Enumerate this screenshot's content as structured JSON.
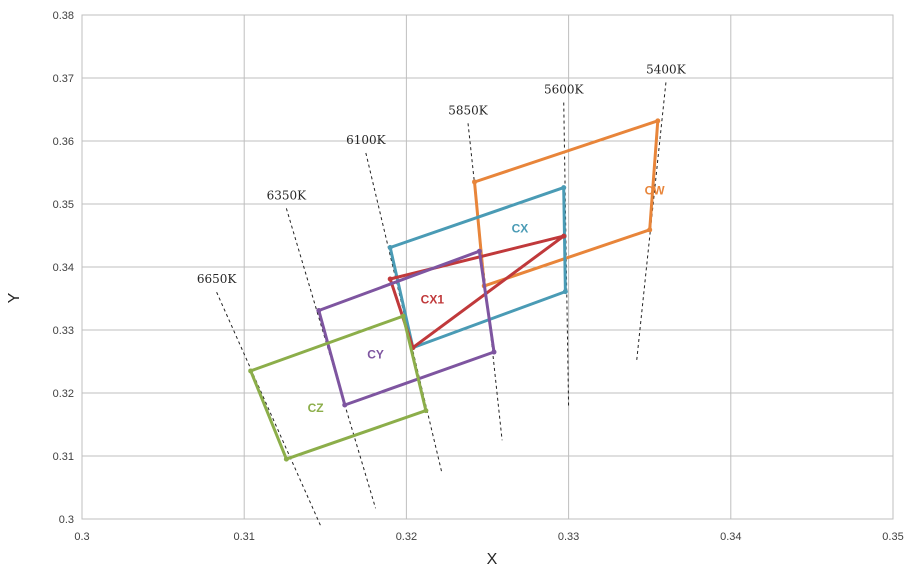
{
  "chart_data": {
    "type": "scatter",
    "xlabel": "X",
    "ylabel": "Y",
    "xlim": [
      0.3,
      0.35
    ],
    "ylim": [
      0.3,
      0.38
    ],
    "x_ticks": [
      "0.3",
      "0.31",
      "0.32",
      "0.33",
      "0.34",
      "0.35"
    ],
    "y_ticks": [
      "0.3",
      "0.31",
      "0.32",
      "0.33",
      "0.34",
      "0.35",
      "0.36",
      "0.37",
      "0.38"
    ],
    "grid": true,
    "legend": "none",
    "isotherms": [
      {
        "label": "6650K",
        "points": [
          [
            0.3083,
            0.336
          ],
          [
            0.3147,
            0.299
          ]
        ]
      },
      {
        "label": "6350K",
        "points": [
          [
            0.3126,
            0.3493
          ],
          [
            0.3181,
            0.3017
          ]
        ]
      },
      {
        "label": "6100K",
        "points": [
          [
            0.3175,
            0.3581
          ],
          [
            0.3222,
            0.3072
          ]
        ]
      },
      {
        "label": "5850K",
        "points": [
          [
            0.3238,
            0.3628
          ],
          [
            0.3259,
            0.3125
          ]
        ]
      },
      {
        "label": "5600K",
        "points": [
          [
            0.3297,
            0.3661
          ],
          [
            0.33,
            0.3177
          ]
        ]
      },
      {
        "label": "5400K",
        "points": [
          [
            0.336,
            0.3693
          ],
          [
            0.3342,
            0.3252
          ]
        ]
      }
    ],
    "series": [
      {
        "name": "CW",
        "color": "#E8853A",
        "points": [
          [
            0.3242,
            0.3535
          ],
          [
            0.3355,
            0.3632
          ],
          [
            0.335,
            0.3459
          ],
          [
            0.3248,
            0.337
          ]
        ]
      },
      {
        "name": "CX",
        "color": "#4A9BB5",
        "points": [
          [
            0.319,
            0.3431
          ],
          [
            0.3297,
            0.3526
          ],
          [
            0.3298,
            0.3361
          ],
          [
            0.3204,
            0.3272
          ]
        ]
      },
      {
        "name": "CX1",
        "color": "#C0393B",
        "points": [
          [
            0.319,
            0.3381
          ],
          [
            0.3297,
            0.3449
          ],
          [
            0.3204,
            0.3272
          ]
        ]
      },
      {
        "name": "CY",
        "color": "#7E55A0",
        "points": [
          [
            0.3146,
            0.3331
          ],
          [
            0.3245,
            0.3425
          ],
          [
            0.3254,
            0.3265
          ],
          [
            0.3162,
            0.3181
          ]
        ]
      },
      {
        "name": "CZ",
        "color": "#8CAE4A",
        "points": [
          [
            0.3104,
            0.3235
          ],
          [
            0.3198,
            0.3322
          ],
          [
            0.3212,
            0.3172
          ],
          [
            0.3126,
            0.3095
          ]
        ]
      }
    ],
    "polygon_labels": [
      {
        "text": "CW",
        "x": 0.3353,
        "y": 0.3515
      },
      {
        "text": "CX",
        "x": 0.327,
        "y": 0.3455
      },
      {
        "text": "CX1",
        "x": 0.3216,
        "y": 0.3342
      },
      {
        "text": "CY",
        "x": 0.3181,
        "y": 0.3255
      },
      {
        "text": "CZ",
        "x": 0.3144,
        "y": 0.317
      }
    ]
  }
}
